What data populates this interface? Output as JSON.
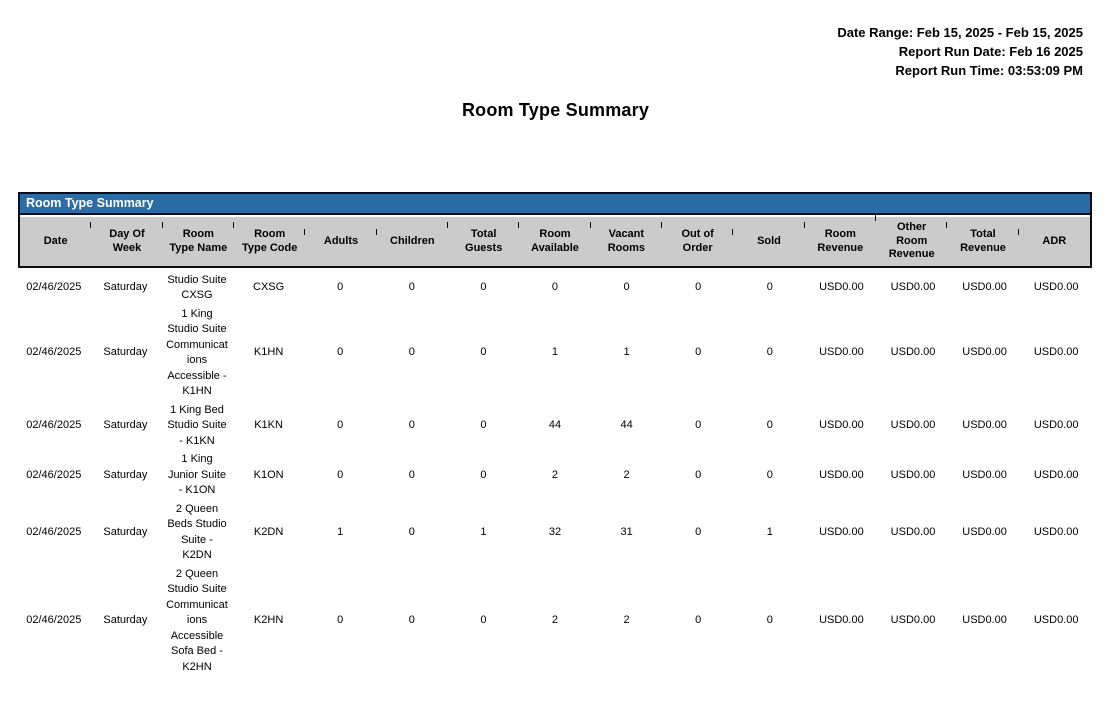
{
  "meta": {
    "date_range": "Date Range: Feb 15, 2025 - Feb 15, 2025",
    "run_date": "Report Run Date: Feb 16 2025",
    "run_time": "Report Run Time: 03:53:09 PM"
  },
  "title": "Room Type Summary",
  "colors": {
    "caption_blue": "#2A6CA5",
    "header_gray": "#CBCBCB",
    "border_dark": "#0c0c18"
  },
  "table": {
    "caption": "Room Type Summary",
    "column_keys": [
      "date",
      "day-of-week",
      "room-type-name",
      "room-type-code",
      "adults",
      "children",
      "total-guests",
      "room-available",
      "vacant-rooms",
      "out-of-order",
      "sold",
      "room-revenue",
      "other-room-revenue",
      "total-revenue",
      "adr"
    ],
    "columns": [
      "Date",
      "Day Of\nWeek",
      "Room\nType Name",
      "Room\nType Code",
      "Adults",
      "Children",
      "Total\nGuests",
      "Room\nAvailable",
      "Vacant\nRooms",
      "Out of\nOrder",
      "Sold",
      "Room\nRevenue",
      "Other\nRoom\nRevenue",
      "Total\nRevenue",
      "ADR"
    ],
    "rows": [
      [
        "02/46/2025",
        "Saturday",
        "Studio Suite\nCXSG",
        "CXSG",
        "0",
        "0",
        "0",
        "0",
        "0",
        "0",
        "0",
        "USD0.00",
        "USD0.00",
        "USD0.00",
        "USD0.00"
      ],
      [
        "02/46/2025",
        "Saturday",
        "1 King\nStudio Suite\nCommunicat\nions\nAccessible -\nK1HN",
        "K1HN",
        "0",
        "0",
        "0",
        "1",
        "1",
        "0",
        "0",
        "USD0.00",
        "USD0.00",
        "USD0.00",
        "USD0.00"
      ],
      [
        "02/46/2025",
        "Saturday",
        "1 King Bed\nStudio Suite\n- K1KN",
        "K1KN",
        "0",
        "0",
        "0",
        "44",
        "44",
        "0",
        "0",
        "USD0.00",
        "USD0.00",
        "USD0.00",
        "USD0.00"
      ],
      [
        "02/46/2025",
        "Saturday",
        "1 King\nJunior Suite\n- K1ON",
        "K1ON",
        "0",
        "0",
        "0",
        "2",
        "2",
        "0",
        "0",
        "USD0.00",
        "USD0.00",
        "USD0.00",
        "USD0.00"
      ],
      [
        "02/46/2025",
        "Saturday",
        "2 Queen\nBeds Studio\nSuite -\nK2DN",
        "K2DN",
        "1",
        "0",
        "1",
        "32",
        "31",
        "0",
        "1",
        "USD0.00",
        "USD0.00",
        "USD0.00",
        "USD0.00"
      ],
      [
        "02/46/2025",
        "Saturday",
        "2 Queen\nStudio Suite\nCommunicat\nions\nAccessible\nSofa Bed -\nK2HN",
        "K2HN",
        "0",
        "0",
        "0",
        "2",
        "2",
        "0",
        "0",
        "USD0.00",
        "USD0.00",
        "USD0.00",
        "USD0.00"
      ]
    ]
  }
}
